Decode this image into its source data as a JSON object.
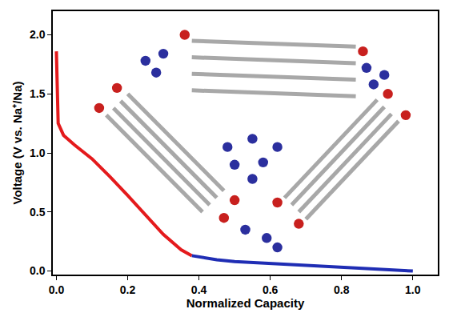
{
  "chart_data": {
    "type": "line",
    "x_label": "Normalized Capacity",
    "y_label": "Voltage (V vs. Na⁺/Na)",
    "xlim": [
      -0.01,
      1.07
    ],
    "ylim": [
      -0.03,
      2.2
    ],
    "xticks": [
      {
        "value": 0,
        "label": "0.0"
      },
      {
        "value": 0.2,
        "label": "0.2"
      },
      {
        "value": 0.4,
        "label": "0.4"
      },
      {
        "value": 0.6,
        "label": "0.6"
      },
      {
        "value": 0.8,
        "label": "0.8"
      },
      {
        "value": 1,
        "label": "1.0"
      }
    ],
    "yticks": [
      {
        "value": 0,
        "label": "0.0"
      },
      {
        "value": 0.5,
        "label": "0.5"
      },
      {
        "value": 1,
        "label": "1.0"
      },
      {
        "value": 1.5,
        "label": "1.5"
      },
      {
        "value": 2,
        "label": "2.0"
      }
    ],
    "grid": false,
    "series": [
      {
        "color": "#e41a1c",
        "x": [
          0,
          0.002,
          0.005,
          0.02,
          0.05,
          0.1,
          0.15,
          0.2,
          0.25,
          0.3,
          0.35,
          0.38
        ],
        "values": [
          1.86,
          1.5,
          1.25,
          1.15,
          1.07,
          0.95,
          0.8,
          0.64,
          0.47,
          0.31,
          0.18,
          0.13
        ]
      },
      {
        "color": "#1f2db4",
        "x": [
          0.38,
          0.45,
          0.5,
          0.6,
          0.7,
          0.8,
          0.9,
          0.95,
          1.0
        ],
        "values": [
          0.13,
          0.095,
          0.08,
          0.065,
          0.05,
          0.035,
          0.02,
          0.012,
          0.0
        ]
      }
    ]
  }
}
